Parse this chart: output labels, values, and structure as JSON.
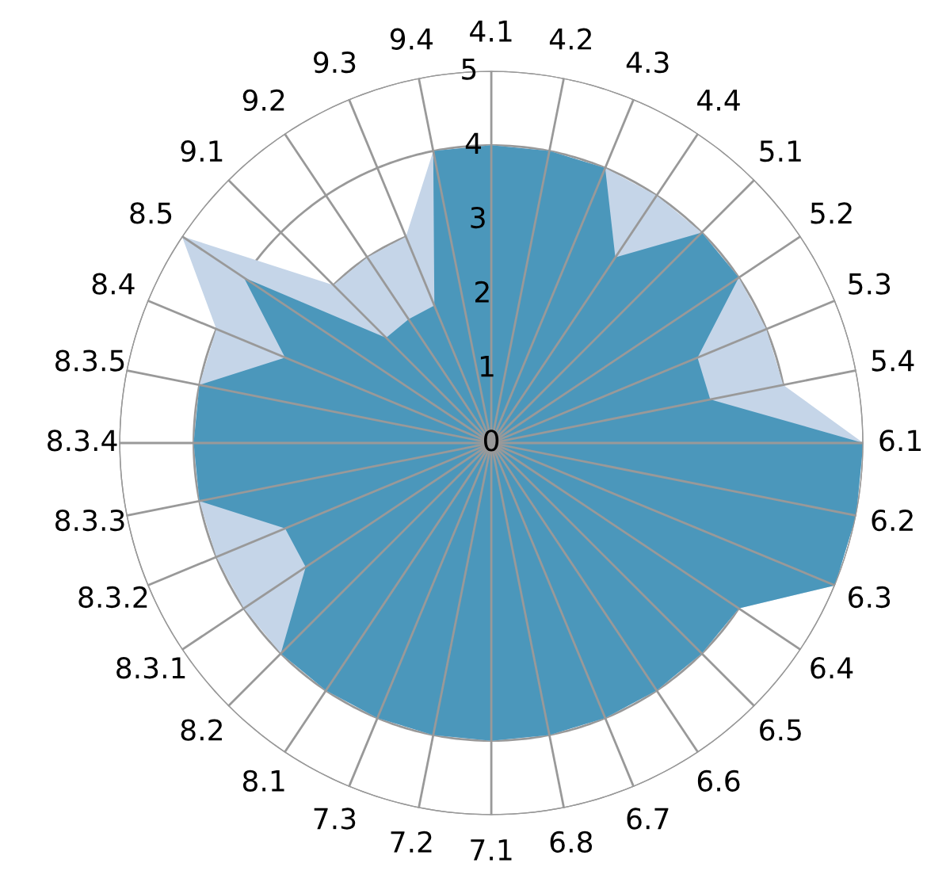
{
  "chart_data": {
    "type": "radar",
    "categories": [
      "4.1",
      "4.2",
      "4.3",
      "4.4",
      "5.1",
      "5.2",
      "5.3",
      "5.4",
      "6.1",
      "6.2",
      "6.3",
      "6.4",
      "6.5",
      "6.6",
      "6.7",
      "6.8",
      "7.1",
      "7.2",
      "7.3",
      "8.1",
      "8.2",
      "8.3.1",
      "8.3.2",
      "8.3.3",
      "8.3.4",
      "8.3.5",
      "8.4",
      "8.5",
      "9.1",
      "9.2",
      "9.3",
      "9.4"
    ],
    "series": [
      {
        "color": "#c5d5e8",
        "values": [
          4,
          4,
          4,
          4,
          4,
          4,
          4,
          4,
          5,
          5,
          5,
          4,
          4,
          4,
          4,
          4,
          4,
          4,
          4,
          4,
          4,
          4,
          4,
          4,
          4,
          4,
          4,
          5,
          3,
          3,
          3,
          4
        ]
      },
      {
        "color": "#4b97bb",
        "values": [
          4,
          4,
          4,
          3,
          4,
          4,
          3,
          3,
          5,
          5,
          5,
          4,
          4,
          4,
          4,
          4,
          4,
          4,
          4,
          4,
          4,
          3,
          3,
          4,
          4,
          4,
          3,
          4,
          2,
          2,
          2,
          4
        ]
      }
    ],
    "ylim": [
      0,
      5
    ],
    "yticks": [
      0,
      1,
      2,
      3,
      4,
      5
    ],
    "grid": true,
    "legend": false
  }
}
